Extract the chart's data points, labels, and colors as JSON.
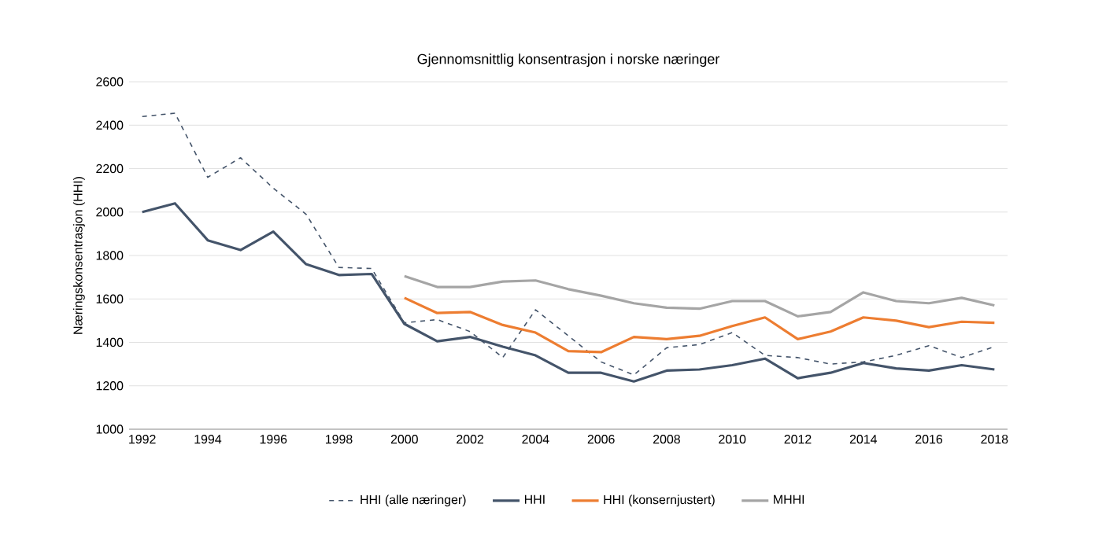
{
  "chart_data": {
    "type": "line",
    "title": "Gjennomsnittlig konsentrasjon i norske næringer",
    "ylabel": "Næringskonsentrasjon (HHI)",
    "xlim": [
      1991.6,
      2018.4
    ],
    "xticks": [
      1992,
      1994,
      1996,
      1998,
      2000,
      2002,
      2004,
      2006,
      2008,
      2010,
      2012,
      2014,
      2016,
      2018
    ],
    "ylim": [
      1000,
      2600
    ],
    "yticks": [
      1000,
      1200,
      1400,
      1600,
      1800,
      2000,
      2200,
      2400,
      2600
    ],
    "grid": "y",
    "legend": "bottom",
    "marker": "none",
    "series": [
      {
        "name": "HHI (alle næringer)",
        "color": "#44546a",
        "line_style": "dashed",
        "x": [
          1992,
          1993,
          1994,
          1995,
          1996,
          1997,
          1998,
          1999,
          2000,
          2001,
          2002,
          2003,
          2004,
          2005,
          2006,
          2007,
          2008,
          2009,
          2010,
          2011,
          2012,
          2013,
          2014,
          2015,
          2016,
          2017,
          2018
        ],
        "values": [
          2440,
          2455,
          2160,
          2250,
          2110,
          1990,
          1745,
          1740,
          1490,
          1505,
          1450,
          1330,
          1550,
          1430,
          1310,
          1250,
          1375,
          1390,
          1445,
          1340,
          1330,
          1300,
          1310,
          1340,
          1385,
          1330,
          1380
        ]
      },
      {
        "name": "HHI",
        "color": "#44546a",
        "line_style": "solid",
        "x": [
          1992,
          1993,
          1994,
          1995,
          1996,
          1997,
          1998,
          1999,
          2000,
          2001,
          2002,
          2003,
          2004,
          2005,
          2006,
          2007,
          2008,
          2009,
          2010,
          2011,
          2012,
          2013,
          2014,
          2015,
          2016,
          2017,
          2018
        ],
        "values": [
          2000,
          2040,
          1870,
          1825,
          1910,
          1760,
          1710,
          1715,
          1485,
          1405,
          1425,
          1380,
          1340,
          1260,
          1260,
          1220,
          1270,
          1275,
          1295,
          1325,
          1235,
          1260,
          1305,
          1280,
          1270,
          1295,
          1275
        ]
      },
      {
        "name": "HHI (konsernjustert)",
        "color": "#ed7d31",
        "line_style": "solid",
        "x": [
          2000,
          2001,
          2002,
          2003,
          2004,
          2005,
          2006,
          2007,
          2008,
          2009,
          2010,
          2011,
          2012,
          2013,
          2014,
          2015,
          2016,
          2017,
          2018
        ],
        "values": [
          1605,
          1535,
          1540,
          1480,
          1445,
          1360,
          1355,
          1425,
          1415,
          1430,
          1475,
          1515,
          1415,
          1450,
          1515,
          1500,
          1470,
          1495,
          1490
        ]
      },
      {
        "name": "MHHI",
        "color": "#a5a5a5",
        "line_style": "solid",
        "x": [
          2000,
          2001,
          2002,
          2003,
          2004,
          2005,
          2006,
          2007,
          2008,
          2009,
          2010,
          2011,
          2012,
          2013,
          2014,
          2015,
          2016,
          2017,
          2018
        ],
        "values": [
          1705,
          1655,
          1655,
          1680,
          1685,
          1645,
          1615,
          1580,
          1560,
          1555,
          1590,
          1590,
          1520,
          1540,
          1630,
          1590,
          1580,
          1605,
          1570
        ]
      }
    ]
  }
}
